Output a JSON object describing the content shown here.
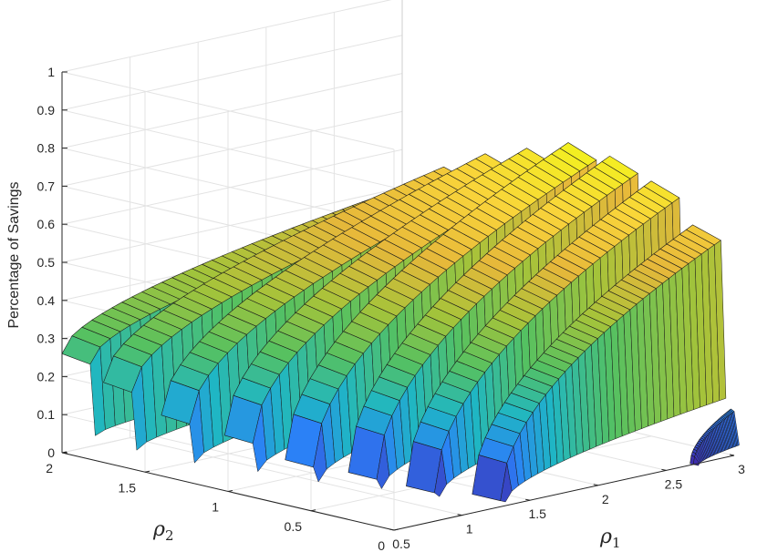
{
  "chart_data": {
    "type": "surface3d",
    "xlabel": "ρ",
    "xlabel_sub": "1",
    "ylabel": "ρ",
    "ylabel_sub": "2",
    "zlabel": "Percentage of Savings",
    "xlim": [
      0.5,
      3
    ],
    "ylim": [
      0,
      2
    ],
    "zlim": [
      0,
      1
    ],
    "x_ticks": [
      "0.5",
      "1",
      "1.5",
      "2",
      "2.5",
      "3"
    ],
    "y_ticks": [
      "0",
      "0.5",
      "1",
      "1.5",
      "2"
    ],
    "z_ticks": [
      "0",
      "0.1",
      "0.2",
      "0.3",
      "0.4",
      "0.5",
      "0.6",
      "0.7",
      "0.8",
      "0.9",
      "1"
    ],
    "grid": true,
    "colormap": "parula",
    "colors": [
      "#3e26a8",
      "#2c7ff8",
      "#1fb6c4",
      "#55c161",
      "#a5c33a",
      "#e6b83a",
      "#f9d43a",
      "#f3f020"
    ],
    "ridges": [
      {
        "rho2": 2.0,
        "x_start": 0.5,
        "x_end": 3.0,
        "peak": 0.5,
        "level": 0.47,
        "x_min": 0.5,
        "min_height": 0.26
      },
      {
        "rho2": 1.75,
        "x_start": 0.5,
        "x_end": 3.0,
        "peak": 0.58,
        "level": 0.52,
        "x_min": 0.5,
        "min_height": 0.21
      },
      {
        "rho2": 1.5,
        "x_start": 0.62,
        "x_end": 3.0,
        "peak": 0.64,
        "level": 0.56,
        "x_min": 0.62,
        "min_height": 0.14
      },
      {
        "rho2": 1.25,
        "x_start": 0.78,
        "x_end": 3.0,
        "peak": 0.68,
        "level": 0.57,
        "x_min": 0.78,
        "min_height": 0.1
      },
      {
        "rho2": 1.0,
        "x_start": 0.92,
        "x_end": 3.0,
        "peak": 0.72,
        "level": 0.58,
        "x_min": 0.92,
        "min_height": 0.05
      },
      {
        "rho2": 0.75,
        "x_start": 1.08,
        "x_end": 3.0,
        "peak": 0.71,
        "level": 0.54,
        "x_min": 1.08,
        "min_height": 0.03
      },
      {
        "rho2": 0.5,
        "x_start": 1.2,
        "x_end": 3.0,
        "peak": 0.67,
        "level": 0.45,
        "x_min": 1.2,
        "min_height": 0.01
      },
      {
        "rho2": 0.25,
        "x_start": 1.38,
        "x_end": 3.0,
        "peak": 0.58,
        "level": 0.3,
        "x_min": 1.38,
        "min_height": 0.0
      },
      {
        "rho2": 0.02,
        "x_start": 2.7,
        "x_end": 3.0,
        "peak": 0.12,
        "level": 0.06,
        "x_min": 2.7,
        "min_height": 0.0
      }
    ]
  }
}
